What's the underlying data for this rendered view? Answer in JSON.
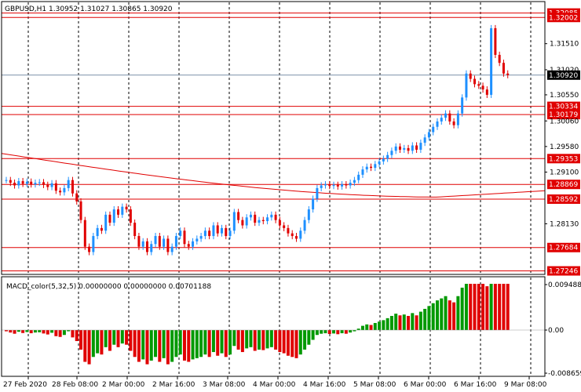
{
  "header": {
    "symbol_tf": "GBPUSD,H1",
    "ohlc": "1.30952 1.31027 1.30865 1.30920"
  },
  "macd_header": "MACD_color(5,32,5) 0.00000000 0.00000000 0.00701188",
  "price_axis": [
    "1.32085",
    "1.32002",
    "1.31510",
    "1.31020",
    "1.30920",
    "1.30550",
    "1.30334",
    "1.30179",
    "1.30060",
    "1.29580",
    "1.29353",
    "1.29100",
    "1.28869",
    "1.28592",
    "1.28130",
    "1.27684",
    "1.27246"
  ],
  "macd_axis": [
    "0.0094882",
    "0.00",
    "-0.008659"
  ],
  "time_axis": [
    "27 Feb 2020",
    "28 Feb 08:00",
    "2 Mar 00:00",
    "2 Mar 16:00",
    "3 Mar 08:00",
    "4 Mar 00:00",
    "4 Mar 16:00",
    "5 Mar 08:00",
    "6 Mar 00:00",
    "6 Mar 16:00",
    "9 Mar 08:00"
  ],
  "chart_data": {
    "type": "candlestick",
    "symbol": "GBPUSD",
    "timeframe": "H1",
    "ylim": [
      1.2718,
      1.323
    ],
    "current_price": 1.3092,
    "horizontal_levels": [
      1.32085,
      1.32002,
      1.30334,
      1.30179,
      1.29353,
      1.28869,
      1.28592,
      1.27684,
      1.27246
    ],
    "close_series": [
      1.2895,
      1.289,
      1.2885,
      1.2893,
      1.2888,
      1.2892,
      1.2887,
      1.289,
      1.2891,
      1.2886,
      1.2882,
      1.2889,
      1.2875,
      1.2872,
      1.288,
      1.2895,
      1.287,
      1.2855,
      1.282,
      1.277,
      1.276,
      1.279,
      1.2805,
      1.28,
      1.283,
      1.2815,
      1.284,
      1.283,
      1.2845,
      1.284,
      1.2815,
      1.279,
      1.277,
      1.278,
      1.276,
      1.2775,
      1.279,
      1.277,
      1.2785,
      1.276,
      1.277,
      1.279,
      1.28,
      1.2775,
      1.277,
      1.278,
      1.2785,
      1.279,
      1.28,
      1.279,
      1.281,
      1.2795,
      1.2805,
      1.279,
      1.28,
      1.2835,
      1.282,
      1.281,
      1.2825,
      1.283,
      1.2815,
      1.282,
      1.2818,
      1.2825,
      1.283,
      1.282,
      1.281,
      1.2805,
      1.2795,
      1.279,
      1.2785,
      1.28,
      1.282,
      1.284,
      1.286,
      1.288,
      1.2885,
      1.2887,
      1.2884,
      1.2886,
      1.2883,
      1.2887,
      1.2885,
      1.289,
      1.2895,
      1.2905,
      1.2915,
      1.292,
      1.2918,
      1.2925,
      1.293,
      1.2935,
      1.2942,
      1.295,
      1.2958,
      1.2952,
      1.2955,
      1.295,
      1.296,
      1.2952,
      1.2965,
      1.2975,
      1.2985,
      1.2995,
      1.3005,
      1.3012,
      1.302,
      1.3005,
      1.2998,
      1.302,
      1.305,
      1.3095,
      1.3085,
      1.3075,
      1.3072,
      1.3065,
      1.3055,
      1.318,
      1.313,
      1.3115,
      1.3095,
      1.3092
    ],
    "macd_histogram_range": [
      -0.008659,
      0.0094882
    ]
  }
}
